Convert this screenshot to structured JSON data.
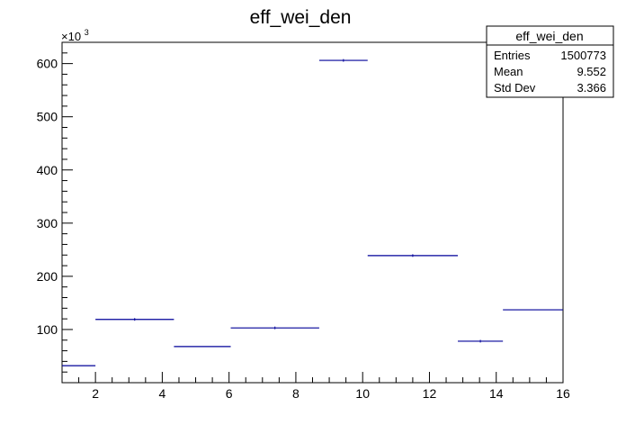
{
  "chart_data": {
    "type": "bar",
    "title": "eff_wei_den",
    "xlabel": "",
    "ylabel": "",
    "y_multiplier_label": "×10",
    "y_multiplier_exponent": "3",
    "xlim": [
      1,
      16
    ],
    "ylim": [
      0,
      640
    ],
    "x_ticks": [
      2,
      4,
      6,
      8,
      10,
      12,
      14,
      16
    ],
    "y_ticks": [
      100,
      200,
      300,
      400,
      500,
      600
    ],
    "bins": [
      {
        "x0": 1.0,
        "x1": 2.0,
        "value": 32,
        "error": 0
      },
      {
        "x0": 2.0,
        "x1": 4.35,
        "value": 119,
        "error": 1
      },
      {
        "x0": 4.35,
        "x1": 6.05,
        "value": 68,
        "error": 0
      },
      {
        "x0": 6.05,
        "x1": 8.7,
        "value": 103,
        "error": 1
      },
      {
        "x0": 8.7,
        "x1": 10.15,
        "value": 606,
        "error": 1
      },
      {
        "x0": 10.15,
        "x1": 12.85,
        "value": 239,
        "error": 1
      },
      {
        "x0": 12.85,
        "x1": 14.2,
        "value": 78,
        "error": 1
      },
      {
        "x0": 14.2,
        "x1": 16.0,
        "value": 137,
        "error": 0
      }
    ],
    "line_color": "#000099",
    "grid": false,
    "legend": "none",
    "stats_box": {
      "title": "eff_wei_den",
      "rows": [
        {
          "label": "Entries",
          "value": "1500773"
        },
        {
          "label": "Mean",
          "value": "9.552"
        },
        {
          "label": "Std Dev",
          "value": "3.366"
        }
      ]
    }
  }
}
